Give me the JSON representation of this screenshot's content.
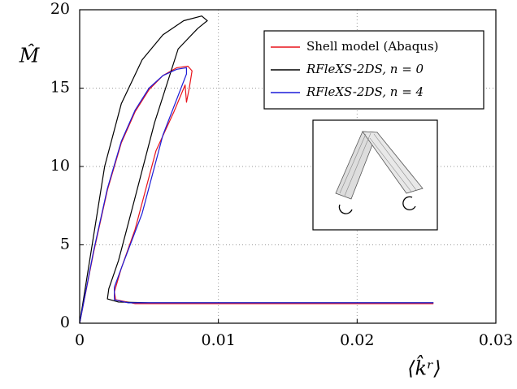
{
  "chart_data": {
    "type": "line",
    "x_label": "⟨k̂ʳ⟩",
    "y_label": "M̂",
    "xlim": [
      0,
      0.03
    ],
    "ylim": [
      0,
      20
    ],
    "xticks": [
      0,
      0.01,
      0.02,
      0.03
    ],
    "yticks": [
      0,
      5,
      10,
      15,
      20
    ],
    "grid": true,
    "legend": "upper right",
    "series": [
      {
        "name": "Shell model (Abaqus)",
        "color": "#e8141c",
        "x": [
          0,
          0.001,
          0.002,
          0.003,
          0.004,
          0.005,
          0.006,
          0.007,
          0.0078,
          0.0081,
          0.0079,
          0.0077,
          0.0076,
          0.0068,
          0.0055,
          0.004,
          0.003,
          0.0025,
          0.0026,
          0.004,
          0.0255
        ],
        "values": [
          0,
          4.5,
          8.5,
          11.5,
          13.5,
          14.9,
          15.8,
          16.3,
          16.4,
          16.1,
          15.0,
          14.1,
          15.2,
          13.5,
          11,
          6,
          3.5,
          2.0,
          1.5,
          1.25,
          1.25
        ]
      },
      {
        "name": "RFleXS-2DS, n = 0",
        "color": "#000000",
        "x": [
          0,
          0.0009,
          0.0018,
          0.003,
          0.0045,
          0.006,
          0.0075,
          0.0088,
          0.0092,
          0.0085,
          0.0071,
          0.0054,
          0.0039,
          0.0028,
          0.0021,
          0.002,
          0.0028,
          0.005,
          0.0255
        ],
        "values": [
          0,
          5,
          10,
          14,
          16.8,
          18.4,
          19.3,
          19.6,
          19.3,
          18.8,
          17.5,
          12.8,
          7.7,
          4.0,
          2.2,
          1.55,
          1.35,
          1.3,
          1.3
        ]
      },
      {
        "name": "RFleXS-2DS, n = 4",
        "color": "#1c1cd8",
        "x": [
          0,
          0.001,
          0.002,
          0.003,
          0.004,
          0.005,
          0.006,
          0.007,
          0.0077,
          0.0077,
          0.006,
          0.0045,
          0.003,
          0.0025,
          0.0025,
          0.0035,
          0.0255
        ],
        "values": [
          0,
          4.6,
          8.6,
          11.6,
          13.6,
          15.0,
          15.8,
          16.2,
          16.3,
          15.9,
          12,
          7,
          3.5,
          2.3,
          1.5,
          1.3,
          1.3
        ]
      }
    ]
  }
}
